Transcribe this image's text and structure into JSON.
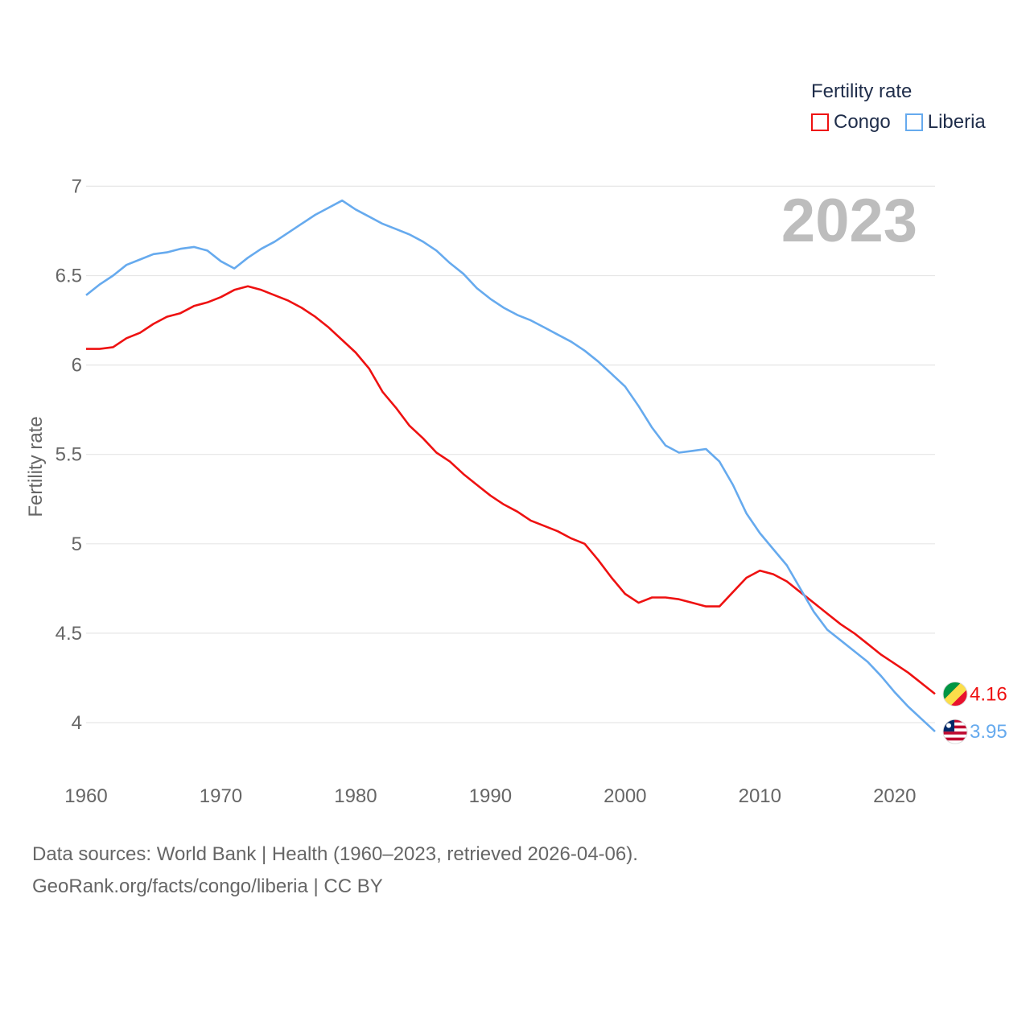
{
  "legend": {
    "title": "Fertility rate",
    "items": [
      {
        "name": "Congo",
        "color": "#ee1111"
      },
      {
        "name": "Liberia",
        "color": "#66aaee"
      }
    ]
  },
  "chart_data": {
    "type": "line",
    "title": "",
    "year_label": "2023",
    "ylabel": "Fertility rate",
    "xlabel": "",
    "ylim": [
      3.8,
      7.05
    ],
    "xlim": [
      1960,
      2023
    ],
    "yticks": [
      "4",
      "4.5",
      "5",
      "5.5",
      "6",
      "6.5",
      "7"
    ],
    "xticks": [
      "1960",
      "1970",
      "1980",
      "1990",
      "2000",
      "2010",
      "2020"
    ],
    "x": [
      1960,
      1961,
      1962,
      1963,
      1964,
      1965,
      1966,
      1967,
      1968,
      1969,
      1970,
      1971,
      1972,
      1973,
      1974,
      1975,
      1976,
      1977,
      1978,
      1979,
      1980,
      1981,
      1982,
      1983,
      1984,
      1985,
      1986,
      1987,
      1988,
      1989,
      1990,
      1991,
      1992,
      1993,
      1994,
      1995,
      1996,
      1997,
      1998,
      1999,
      2000,
      2001,
      2002,
      2003,
      2004,
      2005,
      2006,
      2007,
      2008,
      2009,
      2010,
      2011,
      2012,
      2013,
      2014,
      2015,
      2016,
      2017,
      2018,
      2019,
      2020,
      2021,
      2022,
      2023
    ],
    "series": [
      {
        "name": "Congo",
        "color": "#ee1111",
        "end_label": "4.16",
        "values": [
          6.09,
          6.09,
          6.1,
          6.15,
          6.18,
          6.23,
          6.27,
          6.29,
          6.33,
          6.35,
          6.38,
          6.42,
          6.44,
          6.42,
          6.39,
          6.36,
          6.32,
          6.27,
          6.21,
          6.14,
          6.07,
          5.98,
          5.85,
          5.76,
          5.66,
          5.59,
          5.51,
          5.46,
          5.39,
          5.33,
          5.27,
          5.22,
          5.18,
          5.13,
          5.1,
          5.07,
          5.03,
          5.0,
          4.91,
          4.81,
          4.72,
          4.67,
          4.7,
          4.7,
          4.69,
          4.67,
          4.65,
          4.65,
          4.73,
          4.81,
          4.85,
          4.83,
          4.79,
          4.73,
          4.67,
          4.61,
          4.55,
          4.5,
          4.44,
          4.38,
          4.33,
          4.28,
          4.22,
          4.16
        ]
      },
      {
        "name": "Liberia",
        "color": "#66aaee",
        "end_label": "3.95",
        "values": [
          6.39,
          6.45,
          6.5,
          6.56,
          6.59,
          6.62,
          6.63,
          6.65,
          6.66,
          6.64,
          6.58,
          6.54,
          6.6,
          6.65,
          6.69,
          6.74,
          6.79,
          6.84,
          6.88,
          6.92,
          6.87,
          6.83,
          6.79,
          6.76,
          6.73,
          6.69,
          6.64,
          6.57,
          6.51,
          6.43,
          6.37,
          6.32,
          6.28,
          6.25,
          6.21,
          6.17,
          6.13,
          6.08,
          6.02,
          5.95,
          5.88,
          5.77,
          5.65,
          5.55,
          5.51,
          5.52,
          5.53,
          5.46,
          5.33,
          5.17,
          5.06,
          4.97,
          4.88,
          4.75,
          4.62,
          4.52,
          4.46,
          4.4,
          4.34,
          4.26,
          4.17,
          4.09,
          4.02,
          3.95
        ]
      }
    ]
  },
  "footer": {
    "line1": "Data sources: World Bank | Health (1960–2023, retrieved 2026-04-06).",
    "line2": "GeoRank.org/facts/congo/liberia | CC BY"
  }
}
